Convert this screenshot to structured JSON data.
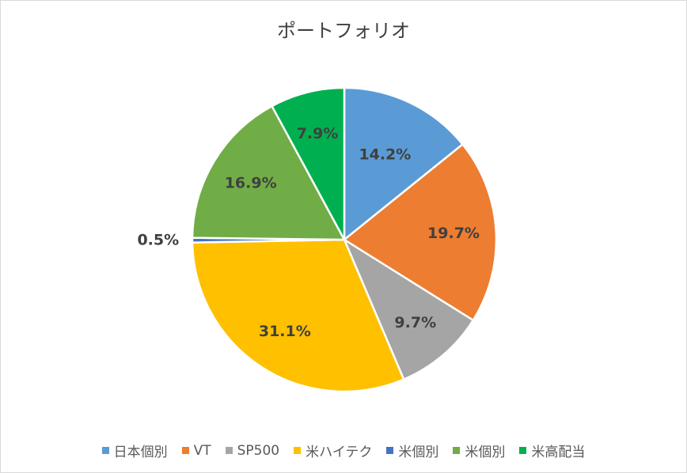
{
  "chart_data": {
    "type": "pie",
    "title": "ポートフォリオ",
    "categories": [
      "日本個別",
      "VT",
      "SP500",
      "米ハイテク",
      "米個別",
      "米個別",
      "米高配当"
    ],
    "values": [
      14.2,
      19.7,
      9.7,
      31.1,
      0.5,
      16.9,
      7.9
    ],
    "labels": [
      "14.2%",
      "19.7%",
      "9.7%",
      "31.1%",
      "0.5%",
      "16.9%",
      "7.9%"
    ],
    "colors": [
      "#5B9BD5",
      "#ED7D31",
      "#A5A5A5",
      "#FFC000",
      "#4472C4",
      "#70AD47",
      "#00B050"
    ],
    "legend_position": "bottom",
    "start_angle": "12 o'clock, clockwise"
  }
}
